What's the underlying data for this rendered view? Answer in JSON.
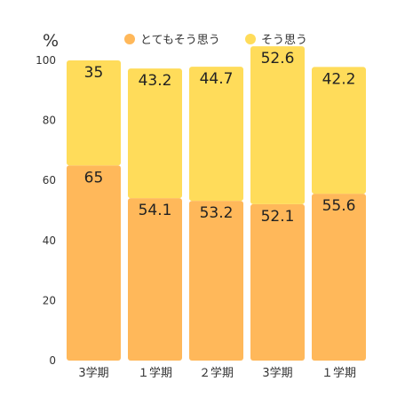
{
  "chart_data": {
    "type": "bar",
    "stacked": true,
    "unit_label": "%",
    "categories": [
      "3学期",
      "１学期",
      "２学期",
      "3学期",
      "１学期"
    ],
    "series": [
      {
        "name": "とてもそう思う",
        "color": "#ffb85a",
        "values": [
          65,
          54.1,
          53.2,
          52.1,
          55.6
        ],
        "labels": [
          "65",
          "54.1",
          "53.2",
          "52.1",
          "55.6"
        ]
      },
      {
        "name": "そう思う",
        "color": "#ffdc5a",
        "values": [
          35,
          43.2,
          44.7,
          52.6,
          42.2
        ],
        "labels": [
          "35",
          "43.2",
          "44.7",
          "52.6",
          "42.2"
        ]
      }
    ],
    "yticks": [
      0,
      20,
      40,
      60,
      80,
      100
    ],
    "ylim": [
      0,
      100
    ],
    "grid": false,
    "legend_position": "top"
  }
}
